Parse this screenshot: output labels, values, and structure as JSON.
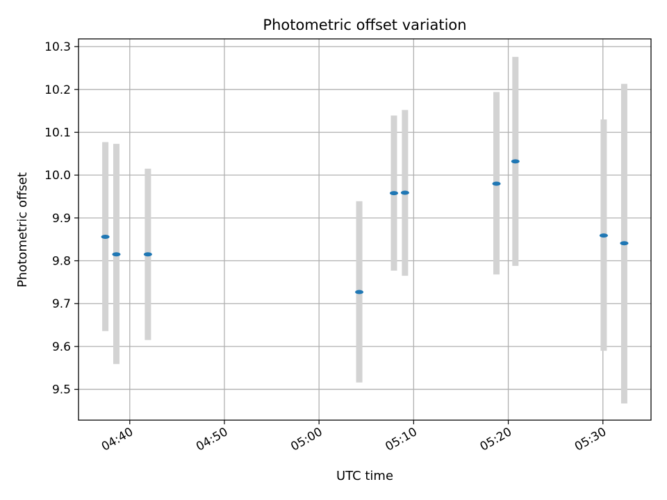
{
  "chart_data": {
    "type": "scatter",
    "title": "Photometric offset variation",
    "xlabel": "UTC time",
    "ylabel": "Photometric offset",
    "x_ticks": [
      "04:40",
      "04:50",
      "05:00",
      "05:10",
      "05:20",
      "05:30"
    ],
    "y_ticks": [
      "9.5",
      "9.6",
      "9.7",
      "9.8",
      "9.9",
      "10.0",
      "10.1",
      "10.2",
      "10.3"
    ],
    "xlim": [
      "04:34:35",
      "05:35:05"
    ],
    "ylim": [
      9.428,
      10.318
    ],
    "grid": true,
    "marker_color": "#1f77b4",
    "errorbar_color": "#d3d3d3",
    "points": [
      {
        "x": "04:37:25",
        "y": 9.856,
        "yerr_low": 9.636,
        "yerr_high": 10.077
      },
      {
        "x": "04:38:35",
        "y": 9.815,
        "yerr_low": 9.559,
        "yerr_high": 10.073
      },
      {
        "x": "04:41:55",
        "y": 9.815,
        "yerr_low": 9.615,
        "yerr_high": 10.015
      },
      {
        "x": "05:04:15",
        "y": 9.727,
        "yerr_low": 9.516,
        "yerr_high": 9.939
      },
      {
        "x": "05:07:55",
        "y": 9.958,
        "yerr_low": 9.777,
        "yerr_high": 10.139
      },
      {
        "x": "05:09:05",
        "y": 9.959,
        "yerr_low": 9.765,
        "yerr_high": 10.152
      },
      {
        "x": "05:18:45",
        "y": 9.98,
        "yerr_low": 9.768,
        "yerr_high": 10.194
      },
      {
        "x": "05:20:45",
        "y": 10.032,
        "yerr_low": 9.788,
        "yerr_high": 10.276
      },
      {
        "x": "05:30:05",
        "y": 9.859,
        "yerr_low": 9.59,
        "yerr_high": 10.13
      },
      {
        "x": "05:32:15",
        "y": 9.841,
        "yerr_low": 9.467,
        "yerr_high": 10.213
      }
    ]
  }
}
